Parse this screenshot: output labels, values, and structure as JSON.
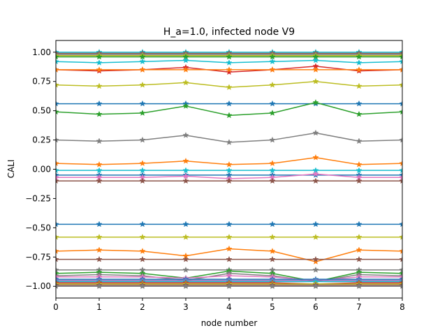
{
  "chart_data": {
    "type": "line",
    "title": "H_a=1.0, infected node V9",
    "xlabel": "node number",
    "ylabel": "CALI",
    "xlim": [
      0,
      8
    ],
    "ylim": [
      -1.1,
      1.1
    ],
    "xticks": [
      "0",
      "1",
      "2",
      "3",
      "4",
      "5",
      "6",
      "7",
      "8"
    ],
    "yticks": [
      "1.00",
      "0.75",
      "0.50",
      "0.25",
      "0.00",
      "−0.25",
      "−0.50",
      "−0.75",
      "−1.00"
    ],
    "ytick_values": [
      1.0,
      0.75,
      0.5,
      0.25,
      0.0,
      -0.25,
      -0.5,
      -0.75,
      -1.0
    ],
    "grid": false,
    "marker": "star",
    "x": [
      0,
      1,
      2,
      3,
      4,
      5,
      6,
      7,
      8
    ],
    "series": [
      {
        "color": "#17becf",
        "values": [
          1.0,
          1.0,
          1.0,
          1.0,
          1.0,
          1.0,
          1.0,
          1.0,
          1.0
        ]
      },
      {
        "color": "#8c564b",
        "values": [
          0.99,
          0.99,
          0.99,
          0.99,
          0.99,
          0.99,
          0.99,
          0.99,
          0.99
        ]
      },
      {
        "color": "#7f7f7f",
        "values": [
          0.98,
          0.98,
          0.98,
          0.98,
          0.98,
          0.98,
          0.98,
          0.98,
          0.98
        ]
      },
      {
        "color": "#bcbd22",
        "values": [
          0.97,
          0.97,
          0.97,
          0.97,
          0.97,
          0.97,
          0.97,
          0.97,
          0.97
        ]
      },
      {
        "color": "#2ca02c",
        "values": [
          0.96,
          0.96,
          0.96,
          0.96,
          0.96,
          0.96,
          0.96,
          0.96,
          0.96
        ]
      },
      {
        "color": "#17becf",
        "values": [
          0.92,
          0.91,
          0.92,
          0.93,
          0.91,
          0.92,
          0.93,
          0.91,
          0.92
        ]
      },
      {
        "color": "#d62728",
        "values": [
          0.85,
          0.84,
          0.85,
          0.87,
          0.83,
          0.85,
          0.88,
          0.84,
          0.85
        ]
      },
      {
        "color": "#ff7f0e",
        "values": [
          0.85,
          0.85,
          0.85,
          0.85,
          0.85,
          0.85,
          0.85,
          0.85,
          0.85
        ]
      },
      {
        "color": "#bcbd22",
        "values": [
          0.72,
          0.71,
          0.72,
          0.74,
          0.7,
          0.72,
          0.75,
          0.71,
          0.72
        ]
      },
      {
        "color": "#1f77b4",
        "values": [
          0.56,
          0.56,
          0.56,
          0.56,
          0.56,
          0.56,
          0.56,
          0.56,
          0.56
        ]
      },
      {
        "color": "#2ca02c",
        "values": [
          0.49,
          0.47,
          0.48,
          0.54,
          0.46,
          0.48,
          0.57,
          0.47,
          0.49
        ]
      },
      {
        "color": "#7f7f7f",
        "values": [
          0.25,
          0.24,
          0.25,
          0.29,
          0.23,
          0.25,
          0.31,
          0.24,
          0.25
        ]
      },
      {
        "color": "#ff7f0e",
        "values": [
          0.05,
          0.04,
          0.05,
          0.07,
          0.04,
          0.05,
          0.1,
          0.04,
          0.05
        ]
      },
      {
        "color": "#17becf",
        "values": [
          -0.01,
          -0.01,
          -0.01,
          -0.01,
          -0.01,
          -0.01,
          -0.01,
          -0.01,
          -0.01
        ]
      },
      {
        "color": "#1f77b4",
        "values": [
          -0.05,
          -0.05,
          -0.05,
          -0.05,
          -0.05,
          -0.05,
          -0.05,
          -0.05,
          -0.05
        ]
      },
      {
        "color": "#e377c2",
        "values": [
          -0.07,
          -0.07,
          -0.07,
          -0.06,
          -0.08,
          -0.07,
          -0.04,
          -0.07,
          -0.07
        ]
      },
      {
        "color": "#8c564b",
        "values": [
          -0.1,
          -0.1,
          -0.1,
          -0.1,
          -0.1,
          -0.1,
          -0.1,
          -0.1,
          -0.1
        ]
      },
      {
        "color": "#1f77b4",
        "values": [
          -0.47,
          -0.47,
          -0.47,
          -0.47,
          -0.47,
          -0.47,
          -0.47,
          -0.47,
          -0.47
        ]
      },
      {
        "color": "#bcbd22",
        "values": [
          -0.58,
          -0.58,
          -0.58,
          -0.58,
          -0.58,
          -0.58,
          -0.58,
          -0.58,
          -0.58
        ]
      },
      {
        "color": "#ff7f0e",
        "values": [
          -0.7,
          -0.69,
          -0.7,
          -0.74,
          -0.68,
          -0.7,
          -0.79,
          -0.69,
          -0.7
        ]
      },
      {
        "color": "#8c564b",
        "values": [
          -0.77,
          -0.77,
          -0.77,
          -0.77,
          -0.77,
          -0.77,
          -0.77,
          -0.77,
          -0.77
        ]
      },
      {
        "color": "#7f7f7f",
        "values": [
          -0.86,
          -0.86,
          -0.86,
          -0.86,
          -0.86,
          -0.86,
          -0.86,
          -0.86,
          -0.86
        ]
      },
      {
        "color": "#2ca02c",
        "values": [
          -0.89,
          -0.88,
          -0.89,
          -0.93,
          -0.87,
          -0.89,
          -0.96,
          -0.88,
          -0.89
        ]
      },
      {
        "color": "#7f7f7f",
        "values": [
          -0.91,
          -0.9,
          -0.91,
          -0.95,
          -0.89,
          -0.91,
          -0.96,
          -0.9,
          -0.91
        ]
      },
      {
        "color": "#e377c2",
        "values": [
          -0.92,
          -0.92,
          -0.92,
          -0.93,
          -0.91,
          -0.92,
          -0.95,
          -0.92,
          -0.92
        ]
      },
      {
        "color": "#1f77b4",
        "values": [
          -0.94,
          -0.94,
          -0.94,
          -0.94,
          -0.94,
          -0.94,
          -0.94,
          -0.94,
          -0.94
        ]
      },
      {
        "color": "#9467bd",
        "values": [
          -0.95,
          -0.95,
          -0.95,
          -0.95,
          -0.95,
          -0.95,
          -0.95,
          -0.95,
          -0.95
        ]
      },
      {
        "color": "#17becf",
        "values": [
          -0.96,
          -0.96,
          -0.96,
          -0.96,
          -0.96,
          -0.96,
          -0.96,
          -0.96,
          -0.96
        ]
      },
      {
        "color": "#d62728",
        "values": [
          -0.97,
          -0.97,
          -0.97,
          -0.97,
          -0.97,
          -0.97,
          -0.98,
          -0.97,
          -0.97
        ]
      },
      {
        "color": "#bcbd22",
        "values": [
          -0.98,
          -0.98,
          -0.98,
          -0.98,
          -0.98,
          -0.98,
          -0.98,
          -0.98,
          -0.98
        ]
      },
      {
        "color": "#8c564b",
        "values": [
          -0.99,
          -0.99,
          -0.99,
          -0.99,
          -0.99,
          -0.99,
          -0.99,
          -0.99,
          -0.99
        ]
      },
      {
        "color": "#7f7f7f",
        "values": [
          -1.0,
          -1.0,
          -1.0,
          -1.0,
          -1.0,
          -1.0,
          -1.0,
          -1.0,
          -1.0
        ]
      }
    ]
  }
}
